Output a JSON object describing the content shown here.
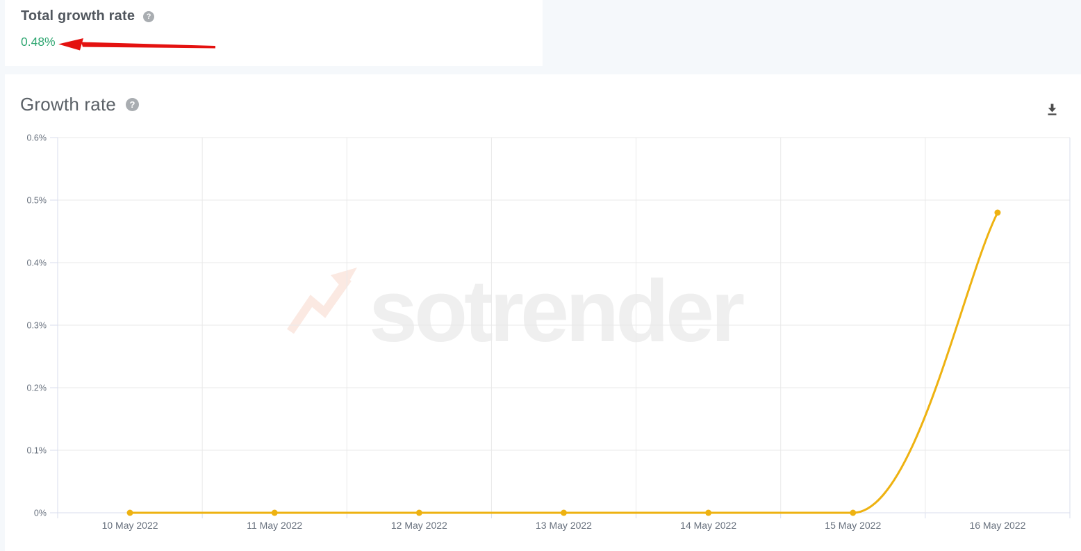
{
  "page": {
    "background": "#f5f8fb"
  },
  "icons": {
    "help": "?",
    "download": "download-arrow",
    "logo": "trend-arrow"
  },
  "summary_card": {
    "title": "Total growth rate",
    "value": "0.48%",
    "value_color": "#2fa671",
    "annotation_arrow_color": "#e41210"
  },
  "chart_card": {
    "title": "Growth rate",
    "watermark": "sotrender"
  },
  "chart_data": {
    "type": "line",
    "title": "Growth rate",
    "categories": [
      "10 May 2022",
      "11 May 2022",
      "12 May 2022",
      "13 May 2022",
      "14 May 2022",
      "15 May 2022",
      "16 May 2022"
    ],
    "series": [
      {
        "name": "Growth rate",
        "values": [
          0,
          0,
          0,
          0,
          0,
          0,
          0.48
        ],
        "color": "#eeb211"
      }
    ],
    "xlabel": "",
    "ylabel": "",
    "ylim": [
      0,
      0.6
    ],
    "ytick_step": 0.1,
    "ytick_labels": [
      "0%",
      "0.1%",
      "0.2%",
      "0.3%",
      "0.4%",
      "0.5%",
      "0.6%"
    ],
    "grid": true,
    "legend": false,
    "colors": {
      "axis": "#d9deee",
      "grid": "#e9e9e9",
      "tick_text": "#67707d"
    }
  }
}
